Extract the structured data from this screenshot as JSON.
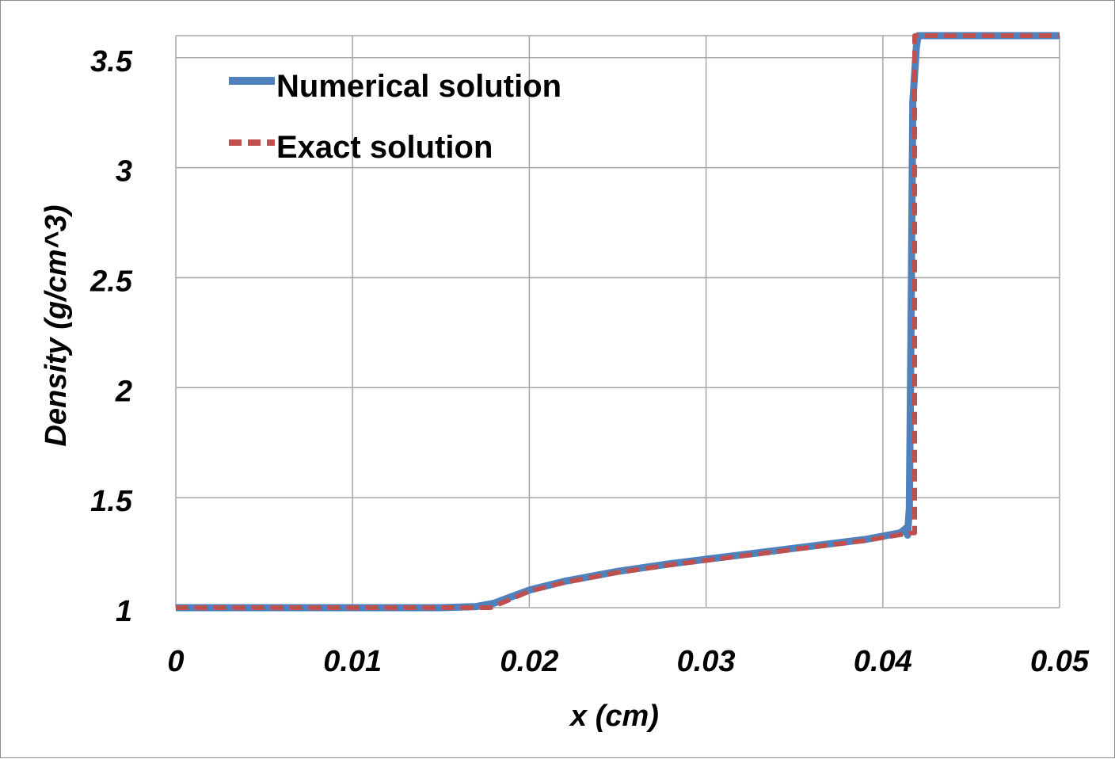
{
  "chart_data": {
    "type": "line",
    "xlabel": "x (cm)",
    "ylabel": "Density (g/cm^3)",
    "xlim": [
      0,
      0.05
    ],
    "ylim": [
      1,
      3.6
    ],
    "x_ticks": [
      0,
      0.01,
      0.02,
      0.03,
      0.04,
      0.05
    ],
    "x_tick_labels": [
      "0",
      "0.01",
      "0.02",
      "0.03",
      "0.04",
      "0.05"
    ],
    "y_ticks": [
      1,
      1.5,
      2,
      2.5,
      3,
      3.5
    ],
    "y_tick_labels": [
      "1",
      "1.5",
      "2",
      "2.5",
      "3",
      "3.5"
    ],
    "grid": true,
    "legend_position": "top-left",
    "series": [
      {
        "name": "Numerical solution",
        "color": "#4f81bd",
        "style": "solid",
        "x": [
          0,
          0.005,
          0.01,
          0.015,
          0.017,
          0.018,
          0.019,
          0.02,
          0.022,
          0.025,
          0.028,
          0.03,
          0.033,
          0.036,
          0.039,
          0.041,
          0.0413,
          0.0414,
          0.0415,
          0.0416,
          0.0417,
          0.0419,
          0.042,
          0.05
        ],
        "y": [
          1.0,
          1.0,
          1.0,
          1.0,
          1.005,
          1.02,
          1.05,
          1.08,
          1.12,
          1.165,
          1.2,
          1.22,
          1.25,
          1.28,
          1.31,
          1.34,
          1.36,
          1.33,
          1.45,
          2.3,
          3.3,
          3.55,
          3.6,
          3.6
        ]
      },
      {
        "name": "Exact solution",
        "color": "#c0504d",
        "style": "dashed",
        "x": [
          0,
          0.005,
          0.01,
          0.015,
          0.0178,
          0.019,
          0.02,
          0.022,
          0.025,
          0.028,
          0.03,
          0.033,
          0.036,
          0.039,
          0.0416,
          0.0418,
          0.0418,
          0.05
        ],
        "y": [
          1.0,
          1.0,
          1.0,
          1.0,
          1.0,
          1.04,
          1.075,
          1.115,
          1.16,
          1.195,
          1.215,
          1.245,
          1.275,
          1.305,
          1.34,
          1.34,
          3.6,
          3.6
        ]
      }
    ]
  }
}
